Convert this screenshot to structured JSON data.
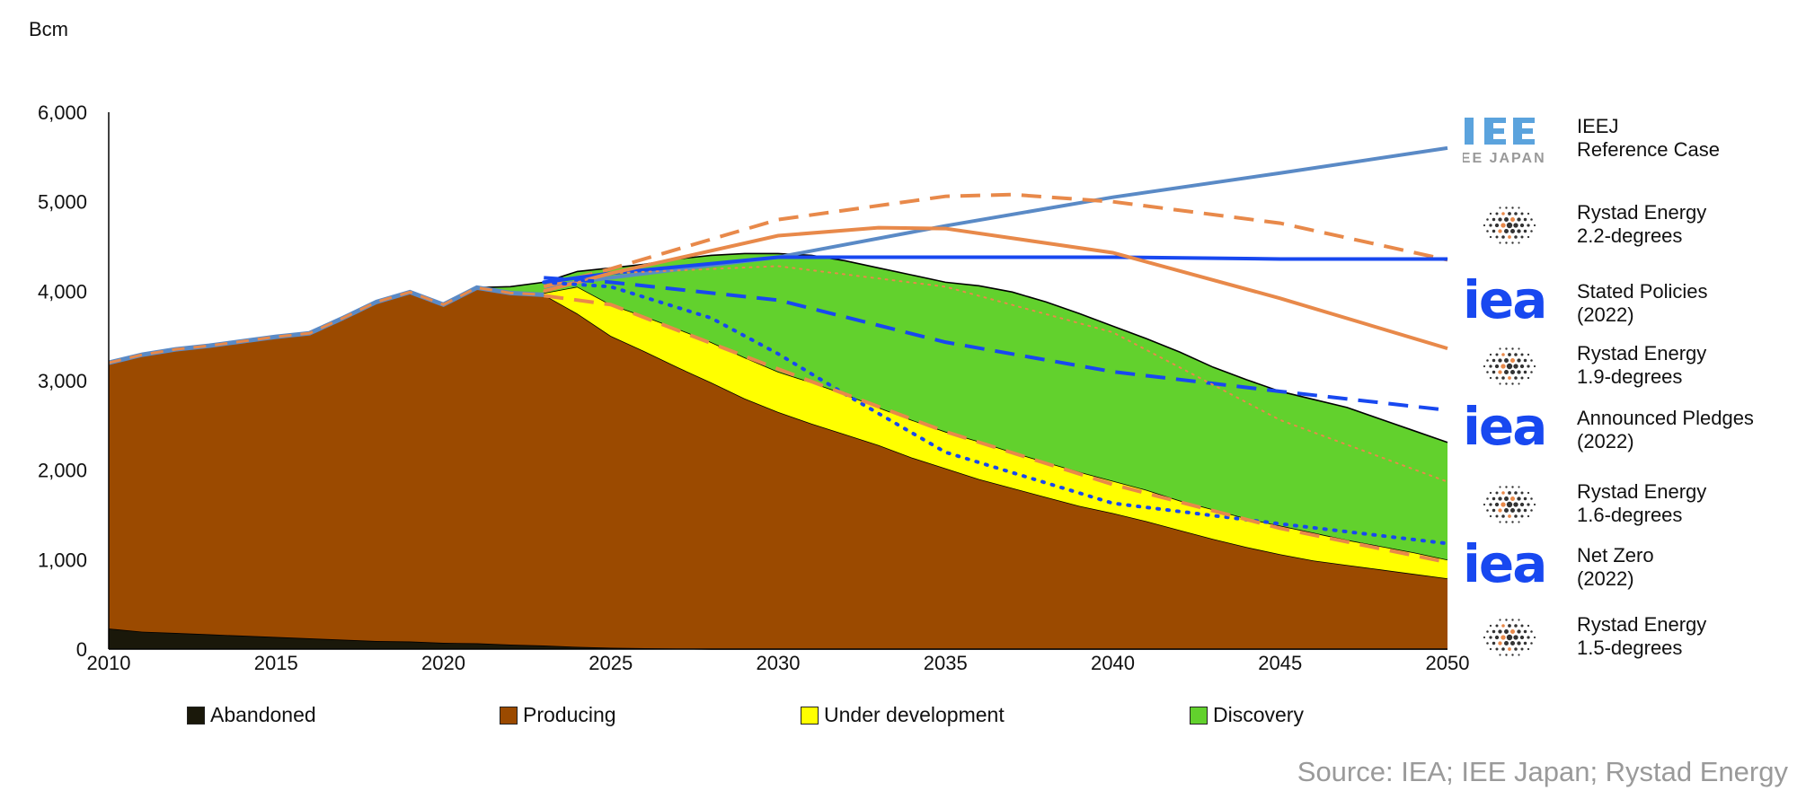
{
  "source": "Source: IEA; IEE Japan; Rystad Energy",
  "colors": {
    "abandoned": "#1a180a",
    "producing": "#9B4A00",
    "under_development": "#FFFF00",
    "discovery": "#62D12D",
    "rystad_orange": "#E8894A",
    "iea_blue": "#1848F0",
    "ieej_blue": "#5A8AC6"
  },
  "chart_data": {
    "type": "area",
    "ylabel": "Bcm",
    "ylim": [
      0,
      6000
    ],
    "xlim": [
      2010,
      2050
    ],
    "y_ticks": [
      "0",
      "1,000",
      "2,000",
      "3,000",
      "4,000",
      "5,000",
      "6,000"
    ],
    "y_tick_values": [
      0,
      1000,
      2000,
      3000,
      4000,
      5000,
      6000
    ],
    "x_ticks": [
      "2010",
      "2015",
      "2020",
      "2025",
      "2030",
      "2035",
      "2040",
      "2045",
      "2050"
    ],
    "x_tick_values": [
      2010,
      2015,
      2020,
      2025,
      2030,
      2035,
      2040,
      2045,
      2050
    ],
    "grid": false,
    "legend_placement": "bottom",
    "years": [
      2010,
      2011,
      2012,
      2013,
      2014,
      2015,
      2016,
      2017,
      2018,
      2019,
      2020,
      2021,
      2022,
      2023,
      2024,
      2025,
      2026,
      2027,
      2028,
      2029,
      2030,
      2031,
      2032,
      2033,
      2034,
      2035,
      2036,
      2037,
      2038,
      2039,
      2040,
      2041,
      2042,
      2043,
      2044,
      2045,
      2046,
      2047,
      2048,
      2049,
      2050
    ],
    "series": [
      {
        "name": "Abandoned",
        "color": "#1a180a",
        "values": [
          230,
          195,
          180,
          165,
          150,
          135,
          120,
          105,
          90,
          85,
          70,
          65,
          50,
          40,
          25,
          15,
          10,
          5,
          0,
          0,
          0,
          0,
          0,
          0,
          0,
          0,
          0,
          0,
          0,
          0,
          0,
          0,
          0,
          0,
          0,
          0,
          0,
          0,
          0,
          0,
          0
        ]
      },
      {
        "name": "Producing",
        "color": "#9B4A00",
        "values": [
          2970,
          3095,
          3170,
          3225,
          3290,
          3355,
          3410,
          3595,
          3790,
          3905,
          3780,
          3975,
          3930,
          3920,
          3725,
          3485,
          3320,
          3145,
          2980,
          2800,
          2650,
          2520,
          2400,
          2280,
          2140,
          2020,
          1900,
          1800,
          1700,
          1600,
          1520,
          1430,
          1330,
          1230,
          1140,
          1060,
          990,
          940,
          890,
          840,
          790
        ]
      },
      {
        "name": "Under development",
        "color": "#FFFF00",
        "values": [
          0,
          0,
          0,
          0,
          0,
          0,
          0,
          0,
          0,
          0,
          0,
          0,
          0,
          20,
          300,
          350,
          390,
          430,
          450,
          460,
          450,
          460,
          450,
          420,
          420,
          410,
          420,
          400,
          390,
          380,
          360,
          350,
          330,
          330,
          320,
          320,
          310,
          280,
          260,
          240,
          210
        ]
      },
      {
        "name": "Discovery",
        "color": "#62D12D",
        "values": [
          0,
          0,
          0,
          0,
          0,
          0,
          0,
          0,
          0,
          0,
          0,
          0,
          70,
          120,
          170,
          410,
          580,
          780,
          970,
          1160,
          1320,
          1420,
          1490,
          1560,
          1620,
          1670,
          1740,
          1790,
          1790,
          1770,
          1730,
          1690,
          1660,
          1590,
          1550,
          1500,
          1490,
          1480,
          1420,
          1360,
          1310
        ]
      }
    ],
    "history_line": {
      "x": [
        2010,
        2011,
        2012,
        2013,
        2014,
        2015,
        2016,
        2017,
        2018,
        2019,
        2020,
        2021,
        2022,
        2023
      ],
      "y": [
        3200,
        3290,
        3350,
        3390,
        3440,
        3490,
        3530,
        3700,
        3880,
        3990,
        3850,
        4040,
        3980,
        3960
      ]
    },
    "scenarios": [
      {
        "name": "IEEJ Reference Case",
        "color": "#5A8AC6",
        "style": "solid",
        "x": [
          2023,
          2025,
          2030,
          2035,
          2040,
          2045,
          2050
        ],
        "y": [
          4050,
          4150,
          4380,
          4730,
          5050,
          5320,
          5600
        ]
      },
      {
        "name": "Rystad Energy 2.2-degrees",
        "color": "#E8894A",
        "style": "dashed",
        "x": [
          2023,
          2025,
          2030,
          2035,
          2037,
          2040,
          2045,
          2050
        ],
        "y": [
          4050,
          4250,
          4800,
          5060,
          5080,
          5000,
          4760,
          4350
        ]
      },
      {
        "name": "Stated Policies (2022)",
        "color": "#1848F0",
        "style": "solid",
        "x": [
          2023,
          2025,
          2030,
          2035,
          2040,
          2045,
          2050
        ],
        "y": [
          4100,
          4200,
          4380,
          4380,
          4380,
          4360,
          4360
        ]
      },
      {
        "name": "Rystad Energy 1.9-degrees",
        "color": "#E8894A",
        "style": "solid",
        "x": [
          2023,
          2025,
          2030,
          2033,
          2035,
          2040,
          2045,
          2050
        ],
        "y": [
          4000,
          4200,
          4620,
          4710,
          4700,
          4430,
          3920,
          3360
        ]
      },
      {
        "name": "Announced Pledges (2022)",
        "color": "#1848F0",
        "style": "dashed",
        "x": [
          2023,
          2025,
          2030,
          2035,
          2040,
          2045,
          2050
        ],
        "y": [
          4150,
          4100,
          3900,
          3430,
          3100,
          2880,
          2670
        ]
      },
      {
        "name": "Rystad Energy 1.6-degrees",
        "color": "#E8894A",
        "style": "dotted-thin",
        "x": [
          2023,
          2025,
          2030,
          2035,
          2040,
          2045,
          2050
        ],
        "y": [
          4000,
          4200,
          4280,
          4050,
          3540,
          2560,
          1870
        ]
      },
      {
        "name": "Net Zero (2022)",
        "color": "#1848F0",
        "style": "dotted",
        "x": [
          2023,
          2025,
          2028,
          2030,
          2032,
          2035,
          2040,
          2045,
          2050
        ],
        "y": [
          4100,
          4050,
          3700,
          3300,
          2850,
          2200,
          1630,
          1400,
          1180
        ]
      },
      {
        "name": "Rystad Energy 1.5-degrees",
        "color": "#E8894A",
        "style": "dashed",
        "x": [
          2023,
          2025,
          2030,
          2035,
          2040,
          2045,
          2050
        ],
        "y": [
          3950,
          3850,
          3130,
          2430,
          1840,
          1350,
          970
        ]
      }
    ]
  },
  "legend_right": [
    {
      "logo": "ieej-logo",
      "logo_text": "IEE JAPAN",
      "line1": "IEEJ",
      "line2": "Reference Case"
    },
    {
      "logo": "rystad-logo",
      "line1": "Rystad Energy",
      "line2": "2.2-degrees"
    },
    {
      "logo": "iea-logo",
      "logo_text": "iea",
      "line1": "Stated Policies",
      "line2": "(2022)"
    },
    {
      "logo": "rystad-logo",
      "line1": "Rystad Energy",
      "line2": "1.9-degrees"
    },
    {
      "logo": "iea-logo",
      "logo_text": "iea",
      "line1": "Announced Pledges",
      "line2": "(2022)"
    },
    {
      "logo": "rystad-logo",
      "line1": "Rystad Energy",
      "line2": "1.6-degrees"
    },
    {
      "logo": "iea-logo",
      "logo_text": "iea",
      "line1": "Net Zero",
      "line2": "(2022)"
    },
    {
      "logo": "rystad-logo",
      "line1": "Rystad Energy",
      "line2": "1.5-degrees"
    }
  ]
}
